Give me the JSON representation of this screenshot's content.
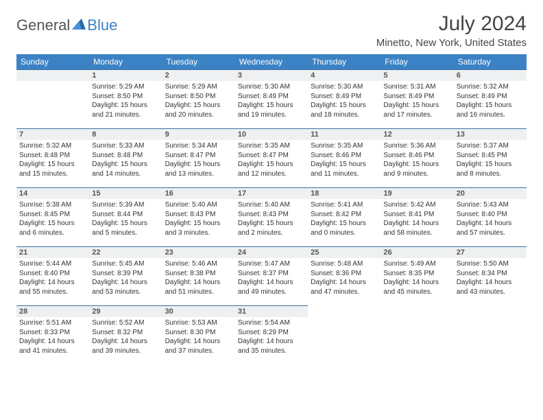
{
  "logo": {
    "text1": "General",
    "text2": "Blue"
  },
  "header": {
    "month": "July 2024",
    "location": "Minetto, New York, United States"
  },
  "dayNames": [
    "Sunday",
    "Monday",
    "Tuesday",
    "Wednesday",
    "Thursday",
    "Friday",
    "Saturday"
  ],
  "colors": {
    "headerBg": "#3b82c4",
    "headerText": "#ffffff",
    "dayBarBg": "#eef0f1",
    "dayBarBorder": "#3b6fa0",
    "bodyText": "#333333"
  },
  "layout": {
    "firstWeekday": 1,
    "daysInMonth": 31,
    "rows": 5,
    "cols": 7
  },
  "days": [
    {
      "n": 1,
      "sr": "5:29 AM",
      "ss": "8:50 PM",
      "dl": "15 hours and 21 minutes."
    },
    {
      "n": 2,
      "sr": "5:29 AM",
      "ss": "8:50 PM",
      "dl": "15 hours and 20 minutes."
    },
    {
      "n": 3,
      "sr": "5:30 AM",
      "ss": "8:49 PM",
      "dl": "15 hours and 19 minutes."
    },
    {
      "n": 4,
      "sr": "5:30 AM",
      "ss": "8:49 PM",
      "dl": "15 hours and 18 minutes."
    },
    {
      "n": 5,
      "sr": "5:31 AM",
      "ss": "8:49 PM",
      "dl": "15 hours and 17 minutes."
    },
    {
      "n": 6,
      "sr": "5:32 AM",
      "ss": "8:49 PM",
      "dl": "15 hours and 16 minutes."
    },
    {
      "n": 7,
      "sr": "5:32 AM",
      "ss": "8:48 PM",
      "dl": "15 hours and 15 minutes."
    },
    {
      "n": 8,
      "sr": "5:33 AM",
      "ss": "8:48 PM",
      "dl": "15 hours and 14 minutes."
    },
    {
      "n": 9,
      "sr": "5:34 AM",
      "ss": "8:47 PM",
      "dl": "15 hours and 13 minutes."
    },
    {
      "n": 10,
      "sr": "5:35 AM",
      "ss": "8:47 PM",
      "dl": "15 hours and 12 minutes."
    },
    {
      "n": 11,
      "sr": "5:35 AM",
      "ss": "8:46 PM",
      "dl": "15 hours and 11 minutes."
    },
    {
      "n": 12,
      "sr": "5:36 AM",
      "ss": "8:46 PM",
      "dl": "15 hours and 9 minutes."
    },
    {
      "n": 13,
      "sr": "5:37 AM",
      "ss": "8:45 PM",
      "dl": "15 hours and 8 minutes."
    },
    {
      "n": 14,
      "sr": "5:38 AM",
      "ss": "8:45 PM",
      "dl": "15 hours and 6 minutes."
    },
    {
      "n": 15,
      "sr": "5:39 AM",
      "ss": "8:44 PM",
      "dl": "15 hours and 5 minutes."
    },
    {
      "n": 16,
      "sr": "5:40 AM",
      "ss": "8:43 PM",
      "dl": "15 hours and 3 minutes."
    },
    {
      "n": 17,
      "sr": "5:40 AM",
      "ss": "8:43 PM",
      "dl": "15 hours and 2 minutes."
    },
    {
      "n": 18,
      "sr": "5:41 AM",
      "ss": "8:42 PM",
      "dl": "15 hours and 0 minutes."
    },
    {
      "n": 19,
      "sr": "5:42 AM",
      "ss": "8:41 PM",
      "dl": "14 hours and 58 minutes."
    },
    {
      "n": 20,
      "sr": "5:43 AM",
      "ss": "8:40 PM",
      "dl": "14 hours and 57 minutes."
    },
    {
      "n": 21,
      "sr": "5:44 AM",
      "ss": "8:40 PM",
      "dl": "14 hours and 55 minutes."
    },
    {
      "n": 22,
      "sr": "5:45 AM",
      "ss": "8:39 PM",
      "dl": "14 hours and 53 minutes."
    },
    {
      "n": 23,
      "sr": "5:46 AM",
      "ss": "8:38 PM",
      "dl": "14 hours and 51 minutes."
    },
    {
      "n": 24,
      "sr": "5:47 AM",
      "ss": "8:37 PM",
      "dl": "14 hours and 49 minutes."
    },
    {
      "n": 25,
      "sr": "5:48 AM",
      "ss": "8:36 PM",
      "dl": "14 hours and 47 minutes."
    },
    {
      "n": 26,
      "sr": "5:49 AM",
      "ss": "8:35 PM",
      "dl": "14 hours and 45 minutes."
    },
    {
      "n": 27,
      "sr": "5:50 AM",
      "ss": "8:34 PM",
      "dl": "14 hours and 43 minutes."
    },
    {
      "n": 28,
      "sr": "5:51 AM",
      "ss": "8:33 PM",
      "dl": "14 hours and 41 minutes."
    },
    {
      "n": 29,
      "sr": "5:52 AM",
      "ss": "8:32 PM",
      "dl": "14 hours and 39 minutes."
    },
    {
      "n": 30,
      "sr": "5:53 AM",
      "ss": "8:30 PM",
      "dl": "14 hours and 37 minutes."
    },
    {
      "n": 31,
      "sr": "5:54 AM",
      "ss": "8:29 PM",
      "dl": "14 hours and 35 minutes."
    }
  ],
  "labels": {
    "sunrise": "Sunrise:",
    "sunset": "Sunset:",
    "daylight": "Daylight:"
  }
}
